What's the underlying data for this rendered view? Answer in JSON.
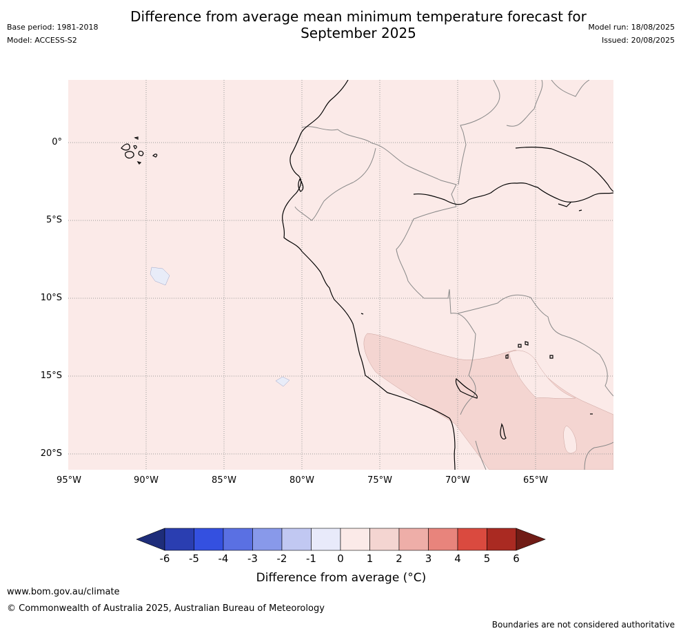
{
  "header": {
    "title_line1": "Difference from average mean minimum temperature forecast for",
    "title_line2": "September 2025",
    "base_period": "Base period: 1981-2018",
    "model": "Model: ACCESS-S2",
    "model_run": "Model run: 18/08/2025",
    "issued": "Issued: 20/08/2025"
  },
  "map": {
    "latitude_labels": [
      "0°",
      "5°S",
      "10°S",
      "15°S",
      "20°S"
    ],
    "longitude_labels": [
      "95°W",
      "90°W",
      "85°W",
      "80°W",
      "75°W",
      "70°W",
      "65°W"
    ],
    "colors": {
      "background_anomaly_0_1": "#fbeae8",
      "anomaly_1_2": "#f4d5d1",
      "anomaly_neg1_0": "#e8ecf8",
      "gridline": "#999999",
      "coastline": "#000000",
      "borders": "#888888"
    }
  },
  "colorbar": {
    "title": "Difference from average (°C)",
    "tick_labels": [
      "-6",
      "-5",
      "-4",
      "-3",
      "-2",
      "-1",
      "0",
      "1",
      "2",
      "3",
      "4",
      "5",
      "6"
    ],
    "colors": [
      "#1e2d7a",
      "#2a3eb1",
      "#3450e0",
      "#5a70e3",
      "#8899ea",
      "#c1c8f2",
      "#e8eafa",
      "#fbeae8",
      "#f4d5d1",
      "#eeaea8",
      "#e8847c",
      "#da4a3f",
      "#aa2a22",
      "#701c16"
    ]
  },
  "footer": {
    "url": "www.bom.gov.au/climate",
    "copyright": "© Commonwealth of Australia 2025, Australian Bureau of Meteorology",
    "disclaimer": "Boundaries are not considered authoritative"
  }
}
